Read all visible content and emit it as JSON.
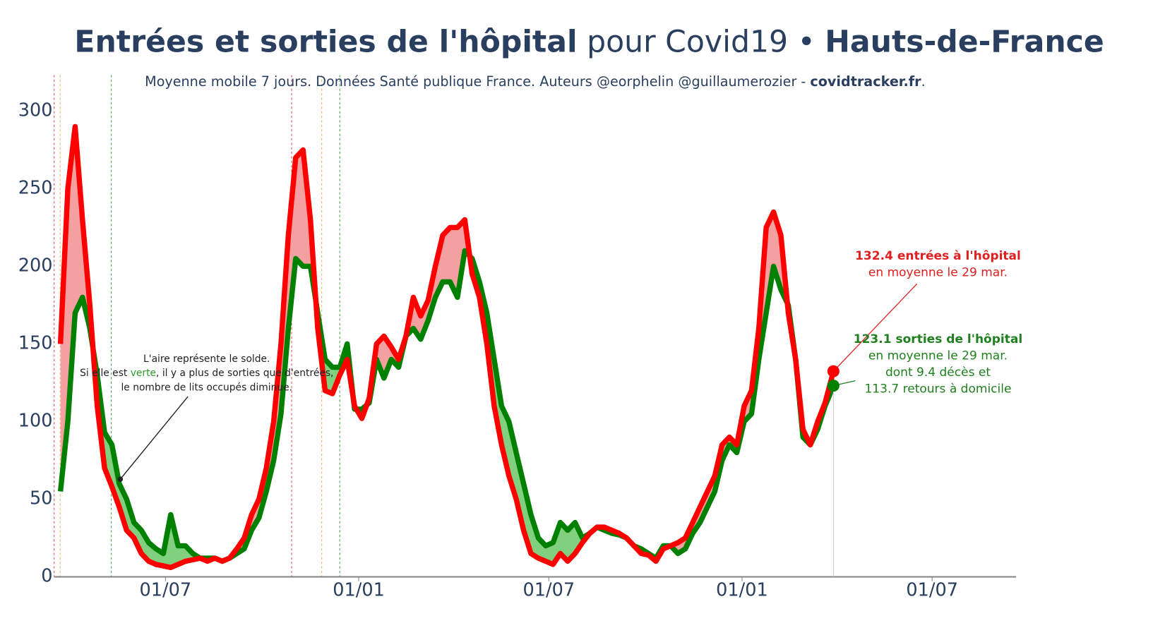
{
  "chart_data": {
    "type": "line",
    "title": [
      "Entrées et sorties de l'hôpital",
      " pour Covid19 • ",
      "Hauts-de-France"
    ],
    "subtitle": [
      "Moyenne mobile 7 jours. Données Santé publique France. Auteurs @eorphelin @guillaumerozier - ",
      "covidtracker.fr",
      "."
    ],
    "x": [
      0,
      7,
      14,
      21,
      28,
      35,
      42,
      49,
      56,
      63,
      70,
      77,
      84,
      91,
      98,
      105,
      112,
      119,
      126,
      133,
      140,
      147,
      154,
      161,
      168,
      175,
      182,
      189,
      196,
      203,
      210,
      217,
      224,
      231,
      238,
      245,
      252,
      259,
      266,
      273,
      280,
      287,
      294,
      301,
      308,
      315,
      322,
      329,
      336,
      343,
      350,
      357,
      364,
      371,
      378,
      385,
      392,
      399,
      406,
      413,
      420,
      427,
      434,
      441,
      448,
      455,
      462,
      469,
      476,
      483,
      490,
      497,
      504,
      511,
      518,
      525,
      532,
      539,
      546,
      553,
      560,
      567,
      574,
      581,
      588,
      595,
      602,
      609,
      616,
      623,
      630,
      637,
      644,
      651,
      658,
      665,
      672,
      679,
      686,
      693,
      700,
      707,
      714,
      721,
      728,
      736
    ],
    "series": [
      {
        "color": "#ff0000",
        "fill_color": "#f4a0a0",
        "values": [
          150,
          250,
          290,
          230,
          175,
          110,
          70,
          58,
          45,
          30,
          25,
          15,
          10,
          8,
          7,
          6,
          8,
          10,
          11,
          12,
          10,
          12,
          10,
          12,
          18,
          25,
          40,
          50,
          70,
          100,
          150,
          220,
          270,
          275,
          230,
          160,
          120,
          118,
          130,
          140,
          110,
          102,
          115,
          150,
          155,
          148,
          140,
          155,
          180,
          168,
          178,
          200,
          220,
          225,
          225,
          230,
          195,
          180,
          150,
          110,
          85,
          65,
          50,
          30,
          15,
          12,
          10,
          8,
          15,
          10,
          15,
          22,
          28,
          32,
          32,
          30,
          28,
          25,
          20,
          15,
          14,
          10,
          18,
          20,
          22,
          25,
          35,
          45,
          55,
          65,
          85,
          90,
          85,
          110,
          120,
          160,
          225,
          235,
          220,
          170,
          140,
          95,
          85,
          100,
          112,
          132.4
        ]
      },
      {
        "color": "#008000",
        "fill_color": "#80d080",
        "values": [
          55,
          100,
          170,
          180,
          160,
          130,
          93,
          85,
          60,
          50,
          35,
          30,
          22,
          18,
          15,
          40,
          20,
          20,
          15,
          12,
          12,
          12,
          10,
          12,
          15,
          18,
          30,
          38,
          55,
          75,
          105,
          160,
          205,
          200,
          200,
          170,
          140,
          135,
          135,
          150,
          108,
          108,
          112,
          140,
          128,
          140,
          135,
          155,
          160,
          153,
          165,
          180,
          190,
          190,
          180,
          210,
          205,
          190,
          170,
          140,
          110,
          100,
          80,
          60,
          40,
          25,
          20,
          22,
          35,
          30,
          35,
          25,
          28,
          32,
          30,
          28,
          27,
          25,
          20,
          18,
          15,
          12,
          20,
          20,
          15,
          18,
          28,
          35,
          45,
          55,
          75,
          85,
          80,
          100,
          105,
          140,
          170,
          200,
          185,
          175,
          140,
          90,
          85,
          95,
          110,
          123.1
        ]
      }
    ],
    "xlim": [
      -6,
      910
    ],
    "xticks": [
      {
        "value": 100,
        "label": "01/07"
      },
      {
        "value": 284,
        "label": "01/01"
      },
      {
        "value": 465,
        "label": "01/07"
      },
      {
        "value": 649,
        "label": "01/01"
      },
      {
        "value": 830,
        "label": "01/07"
      }
    ],
    "ylim": [
      0,
      320
    ],
    "yticks": [
      0,
      50,
      100,
      150,
      200,
      250,
      300
    ],
    "grid": false,
    "entries_label": [
      "132.4 entrées à l'hôpital",
      "en moyenne le 29 mar."
    ],
    "exits_label": [
      "123.1 sorties de l'hôpital",
      "en moyenne le 29 mar.",
      "dont 9.4 décès et",
      "113.7 retours à domicile"
    ],
    "area_note": [
      [
        "L'aire représente le solde."
      ],
      [
        "Si elle est ",
        "verte",
        ", il y a plus de sorties que d'entrées,"
      ],
      [
        "le nombre de lits occupés diminue."
      ]
    ]
  }
}
